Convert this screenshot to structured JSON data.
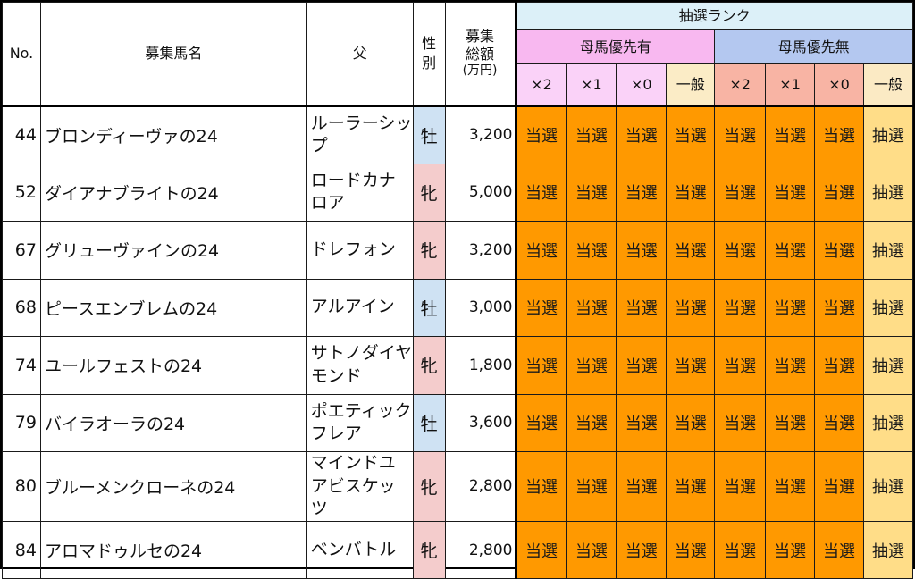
{
  "headers": {
    "no": "No.",
    "name": "募集馬名",
    "sire": "父",
    "sex": "性別",
    "price_line1": "募集",
    "price_line2": "総額",
    "price_unit": "(万円)",
    "lottery_rank": "抽選ランク",
    "dam_priority_yes": "母馬優先有",
    "dam_priority_no": "母馬優先無",
    "sub_columns": [
      "×2",
      "×1",
      "×0",
      "一般",
      "×2",
      "×1",
      "×0",
      "一般"
    ]
  },
  "rows": [
    {
      "no": "44",
      "name": "ブロンディーヴァの24",
      "sire": "ルーラーシップ",
      "sex": "牡",
      "sex_type": "m",
      "price": "3,200",
      "results": [
        "当選",
        "当選",
        "当選",
        "当選",
        "当選",
        "当選",
        "当選",
        "抽選"
      ]
    },
    {
      "no": "52",
      "name": "ダイアナブライトの24",
      "sire": "ロードカナロア",
      "sex": "牝",
      "sex_type": "f",
      "price": "5,000",
      "results": [
        "当選",
        "当選",
        "当選",
        "当選",
        "当選",
        "当選",
        "当選",
        "抽選"
      ]
    },
    {
      "no": "67",
      "name": "グリューヴァインの24",
      "sire": "ドレフォン",
      "sex": "牝",
      "sex_type": "f",
      "price": "3,200",
      "results": [
        "当選",
        "当選",
        "当選",
        "当選",
        "当選",
        "当選",
        "当選",
        "抽選"
      ]
    },
    {
      "no": "68",
      "name": "ピースエンブレムの24",
      "sire": "アルアイン",
      "sex": "牡",
      "sex_type": "m",
      "price": "3,000",
      "results": [
        "当選",
        "当選",
        "当選",
        "当選",
        "当選",
        "当選",
        "当選",
        "抽選"
      ]
    },
    {
      "no": "74",
      "name": "ユールフェストの24",
      "sire": "サトノダイヤモンド",
      "sex": "牝",
      "sex_type": "f",
      "price": "1,800",
      "results": [
        "当選",
        "当選",
        "当選",
        "当選",
        "当選",
        "当選",
        "当選",
        "抽選"
      ]
    },
    {
      "no": "79",
      "name": "バイラオーラの24",
      "sire": "ポエティックフレア",
      "sex": "牡",
      "sex_type": "m",
      "price": "3,600",
      "results": [
        "当選",
        "当選",
        "当選",
        "当選",
        "当選",
        "当選",
        "当選",
        "抽選"
      ]
    },
    {
      "no": "80",
      "name": "ブルーメンクローネの24",
      "sire": "マインドユアビスケッツ",
      "sex": "牝",
      "sex_type": "f",
      "price": "2,800",
      "results": [
        "当選",
        "当選",
        "当選",
        "当選",
        "当選",
        "当選",
        "当選",
        "抽選"
      ]
    },
    {
      "no": "84",
      "name": "アロマドゥルセの24",
      "sire": "ベンバトル",
      "sex": "牝",
      "sex_type": "f",
      "price": "2,800",
      "results": [
        "当選",
        "当選",
        "当選",
        "当選",
        "当選",
        "当選",
        "当選",
        "抽選"
      ]
    }
  ]
}
